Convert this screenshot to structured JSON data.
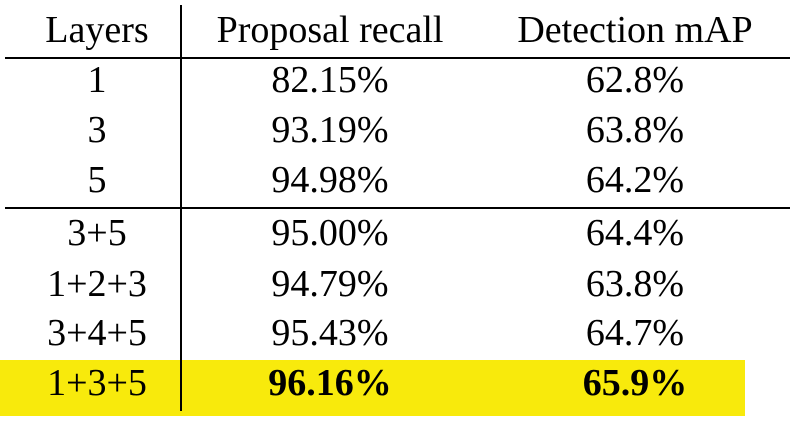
{
  "table": {
    "header": [
      "Layers",
      "Proposal recall",
      "Detection mAP"
    ],
    "rows": [
      [
        "1",
        "82.15%",
        "62.8%"
      ],
      [
        "3",
        "93.19%",
        "63.8%"
      ],
      [
        "5",
        "94.98%",
        "64.2%"
      ],
      [
        "3+5",
        "95.00%",
        "64.4%"
      ],
      [
        "1+2+3",
        "94.79%",
        "63.8%"
      ],
      [
        "3+4+5",
        "95.43%",
        "64.7%"
      ],
      [
        "1+3+5",
        "96.16%",
        "65.9%"
      ]
    ]
  }
}
